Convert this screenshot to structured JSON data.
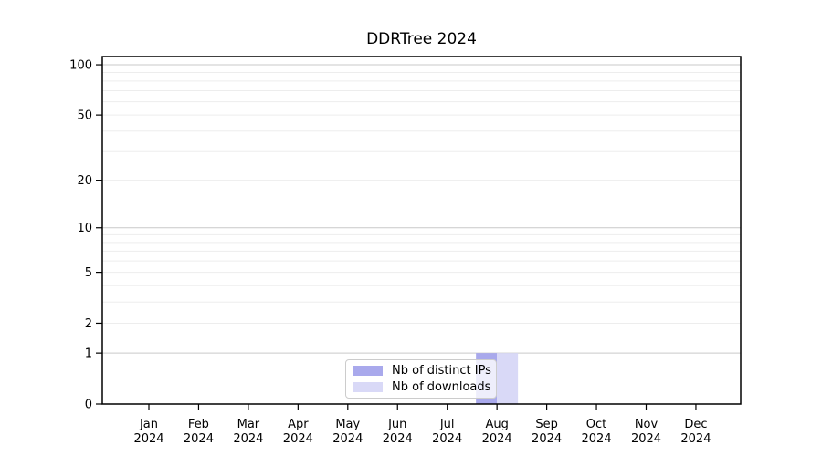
{
  "chart_data": {
    "type": "bar",
    "title": "DDRTree 2024",
    "categories": [
      "Jan 2024",
      "Feb 2024",
      "Mar 2024",
      "Apr 2024",
      "May 2024",
      "Jun 2024",
      "Jul 2024",
      "Aug 2024",
      "Sep 2024",
      "Oct 2024",
      "Nov 2024",
      "Dec 2024"
    ],
    "x_tick_month_labels": [
      "Jan",
      "Feb",
      "Mar",
      "Apr",
      "May",
      "Jun",
      "Jul",
      "Aug",
      "Sep",
      "Oct",
      "Nov",
      "Dec"
    ],
    "x_tick_year_label": "2024",
    "series": [
      {
        "name": "Nb of distinct IPs",
        "color": "#a9a9ec",
        "values": [
          0,
          0,
          0,
          0,
          0,
          0,
          0,
          1,
          0,
          0,
          0,
          0
        ]
      },
      {
        "name": "Nb of downloads",
        "color": "#d9d9f7",
        "values": [
          0,
          0,
          0,
          0,
          0,
          0,
          0,
          1,
          0,
          0,
          0,
          0
        ]
      }
    ],
    "y_axis": {
      "scale": "log1p",
      "ticks": [
        0,
        1,
        2,
        5,
        10,
        20,
        50,
        100
      ],
      "major_gridlines": [
        1,
        10,
        100
      ],
      "minor_gridlines": [
        2,
        3,
        4,
        5,
        6,
        7,
        8,
        9,
        20,
        30,
        40,
        50,
        60,
        70,
        80,
        90
      ],
      "max": 112
    },
    "xlabel": "",
    "ylabel": "",
    "grid": true,
    "legend": {
      "position": "lower center"
    },
    "colors": {
      "axis": "#000000",
      "text": "#000000",
      "major_grid": "#c9c9c9",
      "minor_grid": "#ededed",
      "legend_border": "#cccccc",
      "legend_bg": "rgba(255,255,255,0.8)"
    }
  }
}
